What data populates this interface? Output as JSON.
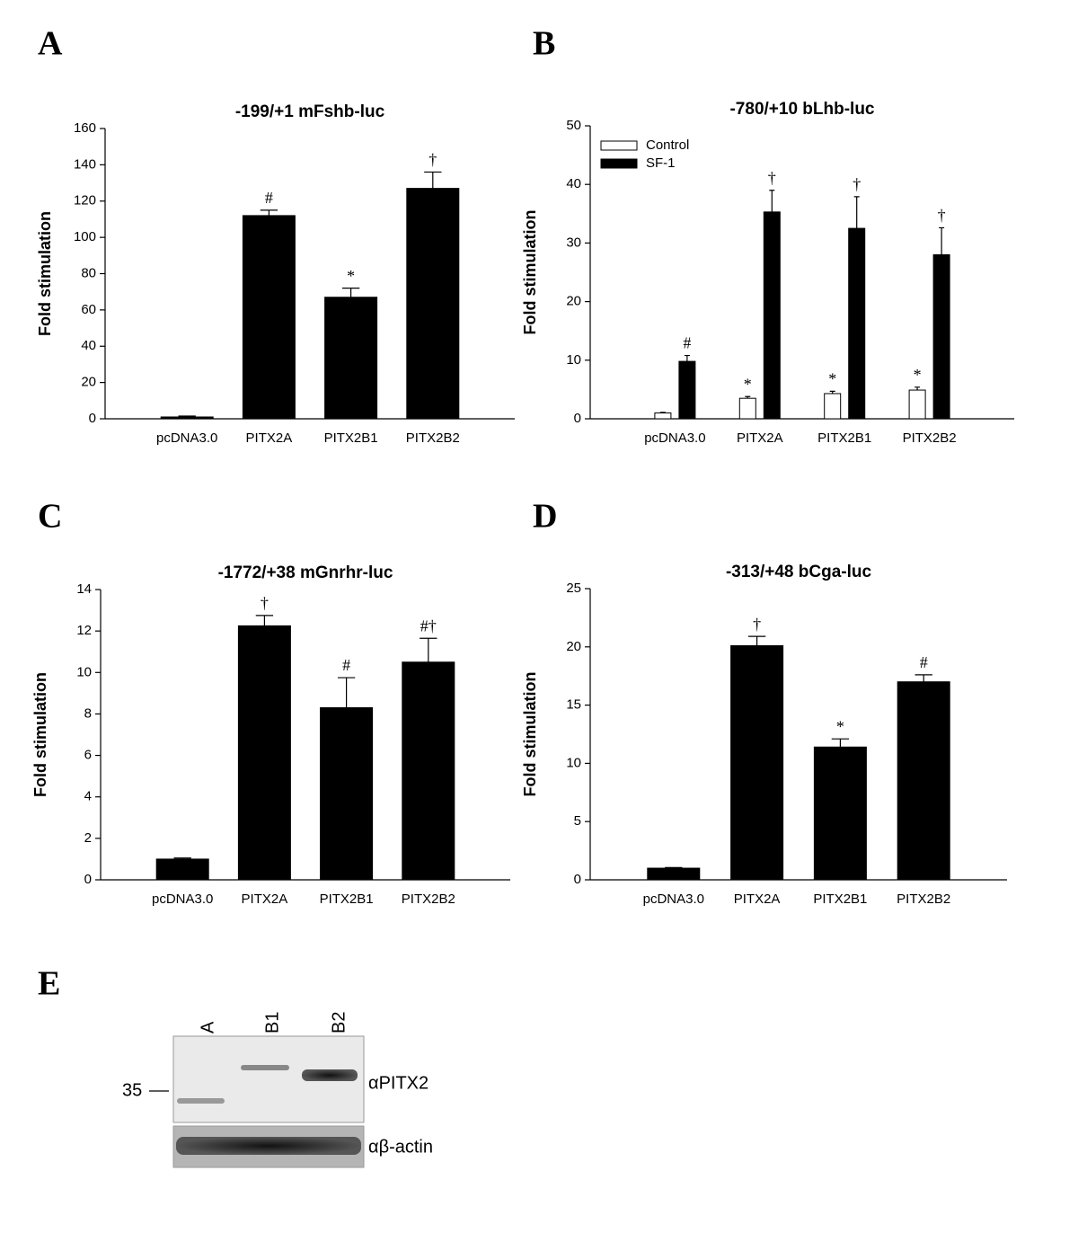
{
  "chart_data": [
    {
      "type": "bar",
      "panel": "A",
      "title": "-199/+1 mFshb-luc",
      "ylabel": "Fold stimulation",
      "categories": [
        "pcDNA3.0",
        "PITX2A",
        "PITX2B1",
        "PITX2B2"
      ],
      "values": [
        1,
        112,
        67,
        127
      ],
      "errors": [
        0.5,
        3,
        5,
        9
      ],
      "sig_labels": [
        null,
        "#",
        "*",
        "†"
      ],
      "color": "#000000",
      "ylim": [
        0,
        160
      ],
      "yticks": [
        0,
        20,
        40,
        60,
        80,
        100,
        120,
        140,
        160
      ]
    },
    {
      "type": "bar",
      "panel": "B",
      "title": "-780/+10 bLhb-luc",
      "ylabel": "Fold stimulation",
      "categories": [
        "pcDNA3.0",
        "PITX2A",
        "PITX2B1",
        "PITX2B2"
      ],
      "series": [
        {
          "name": "Control",
          "color": "#ffffff",
          "values": [
            1,
            3.5,
            4.3,
            4.9
          ],
          "errors": [
            0.1,
            0.3,
            0.4,
            0.5
          ],
          "sig_labels": [
            null,
            "*",
            "*",
            "*"
          ]
        },
        {
          "name": "SF-1",
          "color": "#000000",
          "values": [
            9.8,
            35.3,
            32.5,
            28
          ],
          "errors": [
            1,
            3.7,
            5.4,
            4.6
          ],
          "sig_labels": [
            "#",
            "†",
            "†",
            "†"
          ]
        }
      ],
      "legend": "upper left",
      "ylim": [
        0,
        50
      ],
      "yticks": [
        0,
        10,
        20,
        30,
        40,
        50
      ]
    },
    {
      "type": "bar",
      "panel": "C",
      "title": "-1772/+38 mGnrhr-luc",
      "ylabel": "Fold stimulation",
      "categories": [
        "pcDNA3.0",
        "PITX2A",
        "PITX2B1",
        "PITX2B2"
      ],
      "values": [
        1,
        12.25,
        8.3,
        10.5
      ],
      "errors": [
        0.05,
        0.5,
        1.45,
        1.15
      ],
      "sig_labels": [
        null,
        "†",
        "#",
        "#†"
      ],
      "color": "#000000",
      "ylim": [
        0,
        14
      ],
      "yticks": [
        0,
        2,
        4,
        6,
        8,
        10,
        12,
        14
      ]
    },
    {
      "type": "bar",
      "panel": "D",
      "title": "-313/+48 bCga-luc",
      "ylabel": "Fold stimulation",
      "categories": [
        "pcDNA3.0",
        "PITX2A",
        "PITX2B1",
        "PITX2B2"
      ],
      "values": [
        1,
        20.1,
        11.4,
        17
      ],
      "errors": [
        0.05,
        0.8,
        0.7,
        0.6
      ],
      "sig_labels": [
        null,
        "†",
        "*",
        "#"
      ],
      "color": "#000000",
      "ylim": [
        0,
        25
      ],
      "yticks": [
        0,
        5,
        10,
        15,
        20,
        25
      ]
    }
  ],
  "blot": {
    "panel": "E",
    "lanes": [
      "A",
      "B1",
      "B2"
    ],
    "marker": "35",
    "rows": [
      "αPITX2",
      "αβ-actin"
    ]
  }
}
